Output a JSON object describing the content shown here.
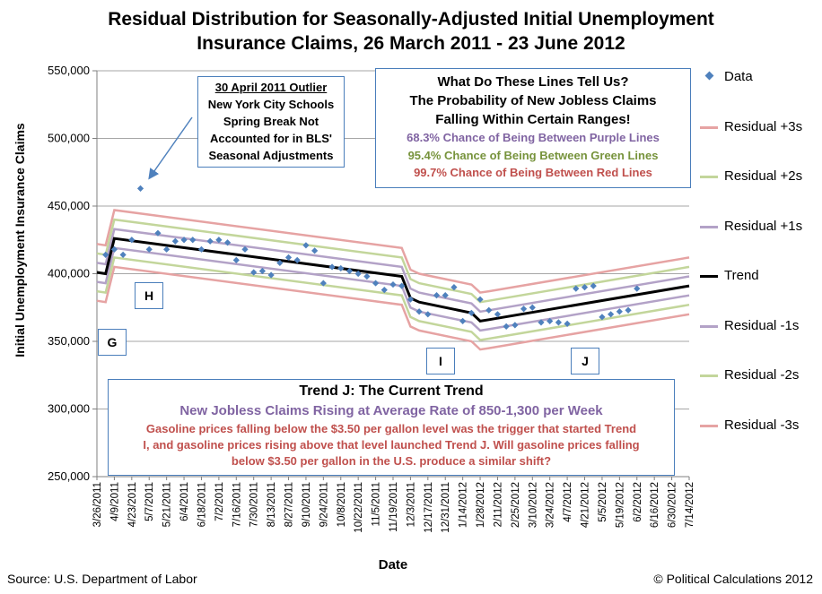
{
  "title": {
    "line1": "Residual Distribution for Seasonally-Adjusted Initial Unemployment",
    "line2": "Insurance Claims, 26 March 2011 - 23 June 2012"
  },
  "source": "Source: U.S. Department of Labor",
  "copyright": "© Political Calculations 2012",
  "callouts": {
    "outlier": {
      "heading": "30 April 2011 Outlier",
      "lines": [
        "New York City Schools",
        "Spring Break Not",
        "Accounted for in BLS'",
        "Seasonal Adjustments"
      ]
    },
    "lines": {
      "heading1": "What Do These Lines Tell Us?",
      "heading2": "The Probability of New Jobless Claims",
      "heading3": "Falling Within Certain Ranges!",
      "purple": "68.3% Chance of Being Between Purple Lines",
      "green": "95.4% Chance of Being Between Green Lines",
      "red": "99.7% Chance of Being Between Red Lines"
    },
    "trend": {
      "heading": "Trend J: The Current Trend",
      "subheading": "New Jobless Claims Rising at Average Rate of 850-1,300 per Week",
      "body1": "Gasoline prices falling below the $3.50 per gallon level was the trigger that started Trend",
      "body2": "I, and gasoline prices rising above that level launched Trend J.  Will gasoline prices falling",
      "body3": "below $3.50 per gallon in the U.S. produce a similar shift?"
    }
  },
  "segments": {
    "g": "G",
    "h": "H",
    "i": "I",
    "j": "J"
  },
  "legend": {
    "data": "Data",
    "p3": "Residual +3s",
    "p2": "Residual +2s",
    "p1": "Residual +1s",
    "trend": "Trend",
    "m1": "Residual -1s",
    "m2": "Residual -2s",
    "m3": "Residual -3s"
  },
  "colors": {
    "data": "#4f81bd",
    "trend": "#000000",
    "s1": "#b3a2c7",
    "s2": "#c3d69b",
    "s3": "#e6a3a3",
    "grid": "#a6a6a6",
    "callout_border": "#4a7ebb"
  },
  "chart_data": {
    "type": "line",
    "title": "Residual Distribution for Seasonally-Adjusted Initial Unemployment Insurance Claims, 26 March 2011 - 23 June 2012",
    "xlabel": "Date",
    "ylabel": "Initial Unemployment Insurance Claims",
    "ylim": [
      250000,
      550000
    ],
    "yticks": [
      250000,
      300000,
      350000,
      400000,
      450000,
      500000,
      550000
    ],
    "ytick_labels": [
      "250,000",
      "300,000",
      "350,000",
      "400,000",
      "450,000",
      "500,000",
      "550,000"
    ],
    "xlim_weeks": [
      0,
      68
    ],
    "xtick_labels": [
      "3/26/2011",
      "4/9/2011",
      "4/23/2011",
      "5/7/2011",
      "5/21/2011",
      "6/4/2011",
      "6/18/2011",
      "7/2/2011",
      "7/16/2011",
      "7/30/2011",
      "8/13/2011",
      "8/27/2011",
      "9/10/2011",
      "9/24/2011",
      "10/8/2011",
      "10/22/2011",
      "11/5/2011",
      "11/19/2011",
      "12/3/2011",
      "12/17/2011",
      "12/31/2011",
      "1/14/2012",
      "1/28/2012",
      "2/11/2012",
      "2/25/2012",
      "3/10/2012",
      "3/24/2012",
      "4/7/2012",
      "4/21/2012",
      "5/5/2012",
      "5/19/2012",
      "6/2/2012",
      "6/16/2012",
      "6/30/2012",
      "7/14/2012"
    ],
    "residual_sigma": 7000,
    "trend": {
      "week": [
        0,
        1,
        2,
        35,
        36,
        37,
        43,
        44,
        45,
        68
      ],
      "value": [
        401000,
        400000,
        426000,
        398000,
        382000,
        379000,
        371000,
        365000,
        366000,
        391000
      ]
    },
    "data": {
      "week": [
        1,
        2,
        3,
        4,
        5,
        6,
        7,
        8,
        9,
        10,
        11,
        12,
        13,
        14,
        15,
        16,
        17,
        18,
        19,
        20,
        21,
        22,
        23,
        24,
        25,
        26,
        27,
        28,
        29,
        30,
        31,
        32,
        33,
        34,
        35,
        36,
        37,
        38,
        39,
        40,
        41,
        42,
        43,
        44,
        45,
        46,
        47,
        48,
        49,
        50,
        51,
        52,
        53,
        54,
        55,
        56,
        57,
        58,
        59,
        60,
        61,
        62
      ],
      "value": [
        414000,
        418000,
        414000,
        425000,
        463000,
        418000,
        430000,
        418000,
        424000,
        425000,
        425000,
        418000,
        424000,
        425000,
        423000,
        410000,
        418000,
        401000,
        402000,
        399000,
        408000,
        412000,
        410000,
        421000,
        417000,
        393000,
        405000,
        404000,
        402000,
        400000,
        398000,
        393000,
        388000,
        392000,
        391000,
        381000,
        372000,
        370000,
        384000,
        384000,
        390000,
        365000,
        371000,
        381000,
        373000,
        370000,
        361000,
        362000,
        374000,
        375000,
        364000,
        365000,
        364000,
        363000,
        389000,
        390000,
        391000,
        368000,
        370000,
        372000,
        373000,
        389000
      ]
    }
  }
}
